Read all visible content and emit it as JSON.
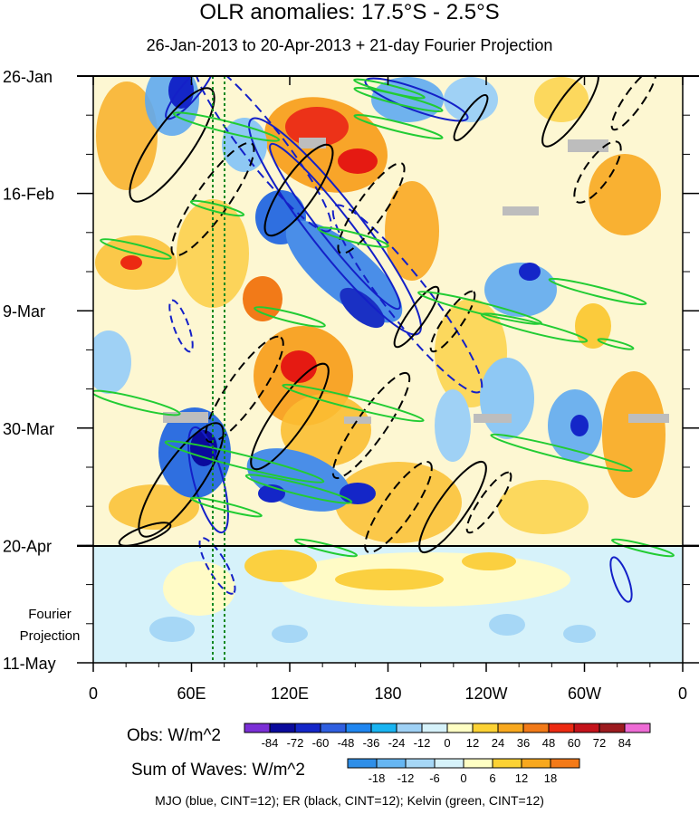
{
  "chart_data": {
    "type": "heatmap",
    "title": "OLR anomalies: 17.5°S - 2.5°S",
    "subtitle": "26-Jan-2013 to 20-Apr-2013 + 21-day Fourier Projection",
    "xlabel": "",
    "ylabel": "",
    "x_ticks": [
      "0",
      "60E",
      "120E",
      "180",
      "120W",
      "60W",
      "0"
    ],
    "y_ticks": [
      "26-Jan",
      "16-Feb",
      "9-Mar",
      "30-Mar",
      "20-Apr",
      "11-May"
    ],
    "projection_label": [
      "Fourier",
      "Projection"
    ],
    "obs_colorbar": {
      "label": "Obs: W/m^2",
      "levels": [
        "-84",
        "-72",
        "-60",
        "-48",
        "-36",
        "-24",
        "-12",
        "0",
        "12",
        "24",
        "36",
        "48",
        "60",
        "72",
        "84"
      ],
      "colors": [
        "#7b2fd6",
        "#0a0a9c",
        "#1426c8",
        "#2f5fe0",
        "#1f86f0",
        "#19b4f2",
        "#9fd1f5",
        "#d6f2fa",
        "#ffffc4",
        "#fcd234",
        "#f8a81e",
        "#f27a18",
        "#ec2a12",
        "#c4131b",
        "#9c1b1f",
        "#ee6bd5"
      ]
    },
    "waves_colorbar": {
      "label": "Sum of Waves: W/m^2",
      "levels": [
        "-18",
        "-12",
        "-6",
        "0",
        "6",
        "12",
        "18"
      ],
      "colors": [
        "#2f8fe8",
        "#66b6f2",
        "#a6d7f6",
        "#d6f2fa",
        "#ffffc4",
        "#fcd234",
        "#f8a81e",
        "#f47a18"
      ]
    },
    "footer": "MJO (blue, CINT=12); ER (black, CINT=12); Kelvin (green, CINT=12)"
  }
}
